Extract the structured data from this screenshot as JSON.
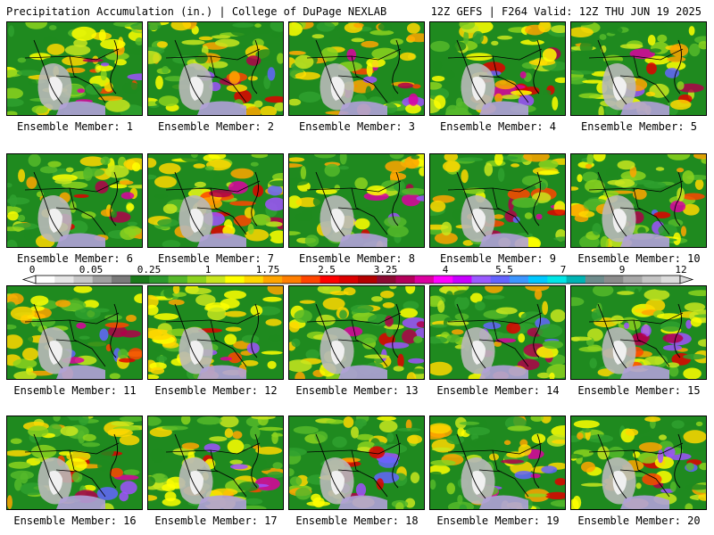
{
  "header": {
    "title_left": "Precipitation Accumulation (in.) | College of DuPage NEXLAB",
    "title_right": "12Z GEFS | F264 Valid: 12Z THU JUN 19 2025"
  },
  "map": {
    "variable": "Precipitation Accumulation (in.)",
    "region": "North America",
    "ensemble_members": [
      "Ensemble Member: 1",
      "Ensemble Member: 2",
      "Ensemble Member: 3",
      "Ensemble Member: 4",
      "Ensemble Member: 5",
      "Ensemble Member: 6",
      "Ensemble Member: 7",
      "Ensemble Member: 8",
      "Ensemble Member: 9",
      "Ensemble Member: 10",
      "Ensemble Member: 11",
      "Ensemble Member: 12",
      "Ensemble Member: 13",
      "Ensemble Member: 14",
      "Ensemble Member: 15",
      "Ensemble Member: 16",
      "Ensemble Member: 17",
      "Ensemble Member: 18",
      "Ensemble Member: 19",
      "Ensemble Member: 20"
    ]
  },
  "colorbar": {
    "tick_labels": [
      "0",
      "0.05",
      "0.25",
      "1",
      "1.75",
      "2.5",
      "3.25",
      "4",
      "5.5",
      "7",
      "9",
      "12"
    ],
    "colors": [
      "#ffffff",
      "#e6e6e6",
      "#c8c8c8",
      "#a0a0a0",
      "#7a7a7a",
      "#1a7a1a",
      "#2e9a2e",
      "#55b82a",
      "#8cd21e",
      "#c8e61e",
      "#ffff00",
      "#ffd700",
      "#ffa500",
      "#ff7f00",
      "#ff4500",
      "#ff0000",
      "#dc0000",
      "#b40000",
      "#8c0a32",
      "#b4005a",
      "#dc00a0",
      "#ff00ff",
      "#c800ff",
      "#9a5aff",
      "#6464ff",
      "#3c96ff",
      "#00c8ff",
      "#00e6e6",
      "#00b4b4",
      "#6e8c8c",
      "#8c8c8c",
      "#a8a8a8",
      "#c4c4c4",
      "#dcdcdc"
    ]
  }
}
